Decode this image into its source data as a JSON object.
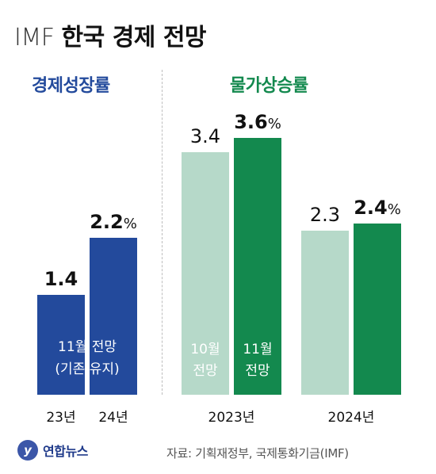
{
  "header": {
    "title_prefix": "IMF",
    "title_main": "한국 경제 전망"
  },
  "sections": {
    "growth_title": "경제성장률",
    "inflation_title": "물가상승률"
  },
  "colors": {
    "growth_bar": "#234a9c",
    "growth_title": "#234a9c",
    "inflation_title": "#13894e",
    "oct_bar": "#b6d9c9",
    "nov_bar": "#13894e",
    "label_dark": "#111111",
    "label_on_bar_light": "#ffffff"
  },
  "notes": {
    "growth_note_line1": "11월 전망",
    "growth_note_line2": "(기존 유지)",
    "oct_label_line1": "10월",
    "oct_label_line2": "전망",
    "nov_label_line1": "11월",
    "nov_label_line2": "전망"
  },
  "chart_data": [
    {
      "type": "bar",
      "title": "경제성장률",
      "categories": [
        "23년",
        "24년"
      ],
      "values": [
        1.4,
        2.2
      ],
      "value_labels": [
        "1.4",
        "2.2%"
      ],
      "ylim": [
        0,
        4.0
      ],
      "grid": false
    },
    {
      "type": "bar",
      "title": "물가상승률",
      "categories": [
        "2023년",
        "2024년"
      ],
      "series": [
        {
          "name": "10월 전망",
          "values": [
            3.4,
            2.3
          ],
          "value_labels": [
            "3.4",
            "2.3"
          ]
        },
        {
          "name": "11월 전망",
          "values": [
            3.6,
            2.4
          ],
          "value_labels": [
            "3.6%",
            "2.4%"
          ]
        }
      ],
      "ylim": [
        0,
        4.0
      ],
      "grid": false
    }
  ],
  "footer": {
    "logo_text": "연합뉴스",
    "logo_mark": "y",
    "source": "자료: 기획재정부, 국제통화기금(IMF)"
  }
}
